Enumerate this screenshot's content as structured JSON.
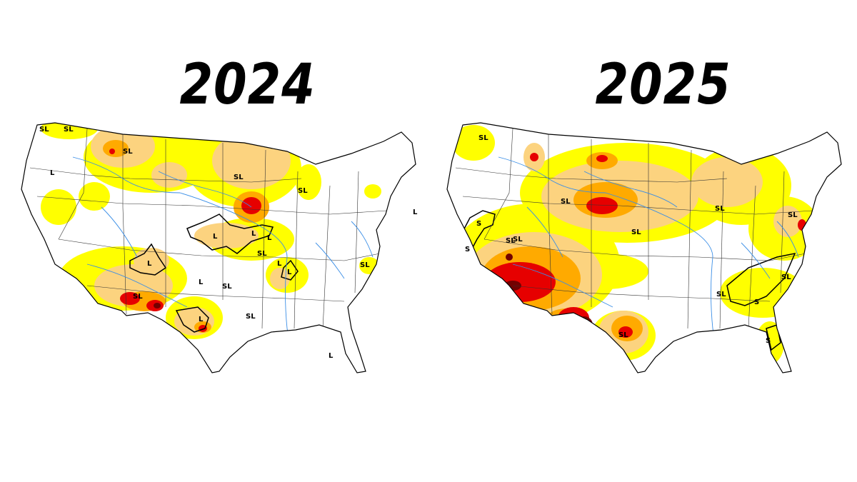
{
  "maps": [
    {
      "year": "2024",
      "labels": [
        "SL",
        "SL",
        "SL",
        "L",
        "SL",
        "SL",
        "L",
        "L",
        "L",
        "SL",
        "L",
        "L",
        "L",
        "SL",
        "SL",
        "L",
        "L",
        "SL",
        "SL",
        "L",
        "L"
      ],
      "colors": {
        "D0": "#ffff00",
        "D1": "#fcd37f",
        "D2": "#ffaa00",
        "D3": "#e60000",
        "D4": "#730000"
      }
    },
    {
      "year": "2025",
      "labels": [
        "SL",
        "SL",
        "S",
        "S",
        "SL",
        "SL",
        "SL",
        "SL",
        "SL",
        "SL",
        "SL",
        "SL",
        "S",
        "S",
        "SL"
      ],
      "colors": {
        "D0": "#ffff00",
        "D1": "#fcd37f",
        "D2": "#ffaa00",
        "D3": "#e60000",
        "D4": "#730000"
      }
    }
  ]
}
